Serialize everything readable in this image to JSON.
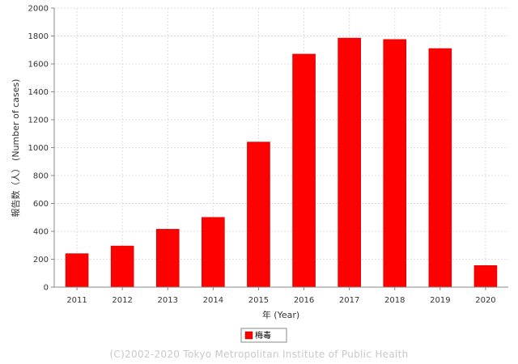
{
  "chart_data": {
    "type": "bar",
    "categories": [
      "2011",
      "2012",
      "2013",
      "2014",
      "2015",
      "2016",
      "2017",
      "2018",
      "2019",
      "2020"
    ],
    "series": [
      {
        "name": "梅毒",
        "values": [
          240,
          295,
          415,
          500,
          1040,
          1670,
          1785,
          1775,
          1710,
          155
        ]
      }
    ],
    "xlabel": "年 (Year)",
    "ylabel": "報告数（人） (Number of cases)",
    "ylim": [
      0,
      2000
    ],
    "yticks": [
      0,
      200,
      400,
      600,
      800,
      1000,
      1200,
      1400,
      1600,
      1800,
      2000
    ],
    "grid": true,
    "legend_position": "bottom-center",
    "bar_color": "#ff0000"
  },
  "footer": {
    "copyright": "(C)2002-2020 Tokyo Metropolitan Institute of Public Health"
  }
}
